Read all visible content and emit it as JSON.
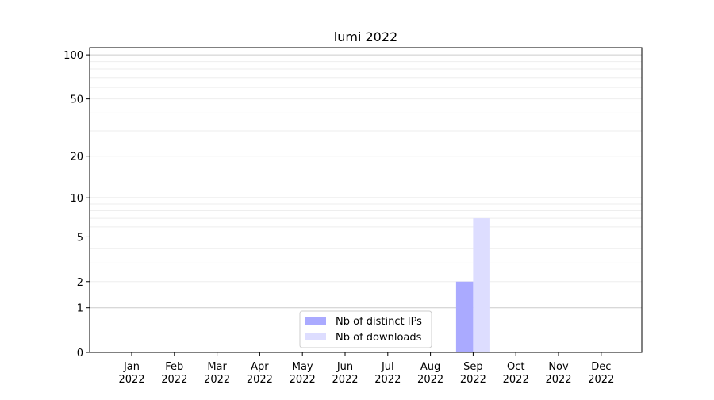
{
  "chart_data": {
    "type": "bar",
    "title": "lumi 2022",
    "xlabel": "",
    "ylabel": "",
    "yscale": "log(1+y)",
    "ylim": [
      0,
      112
    ],
    "grid": true,
    "legend_placement": "bottom-center",
    "categories": [
      "Jan\n2022",
      "Feb\n2022",
      "Mar\n2022",
      "Apr\n2022",
      "May\n2022",
      "Jun\n2022",
      "Jul\n2022",
      "Aug\n2022",
      "Sep\n2022",
      "Oct\n2022",
      "Nov\n2022",
      "Dec\n2022"
    ],
    "yticks": [
      0,
      1,
      2,
      5,
      10,
      20,
      50,
      100
    ],
    "series": [
      {
        "name": "Nb of distinct IPs",
        "color": "#aaaaff",
        "values": [
          0,
          0,
          0,
          0,
          0,
          0,
          0,
          0,
          2,
          0,
          0,
          0
        ]
      },
      {
        "name": "Nb of downloads",
        "color": "#ddddff",
        "values": [
          0,
          0,
          0,
          0,
          0,
          0,
          0,
          0,
          7,
          0,
          0,
          0
        ]
      }
    ]
  }
}
